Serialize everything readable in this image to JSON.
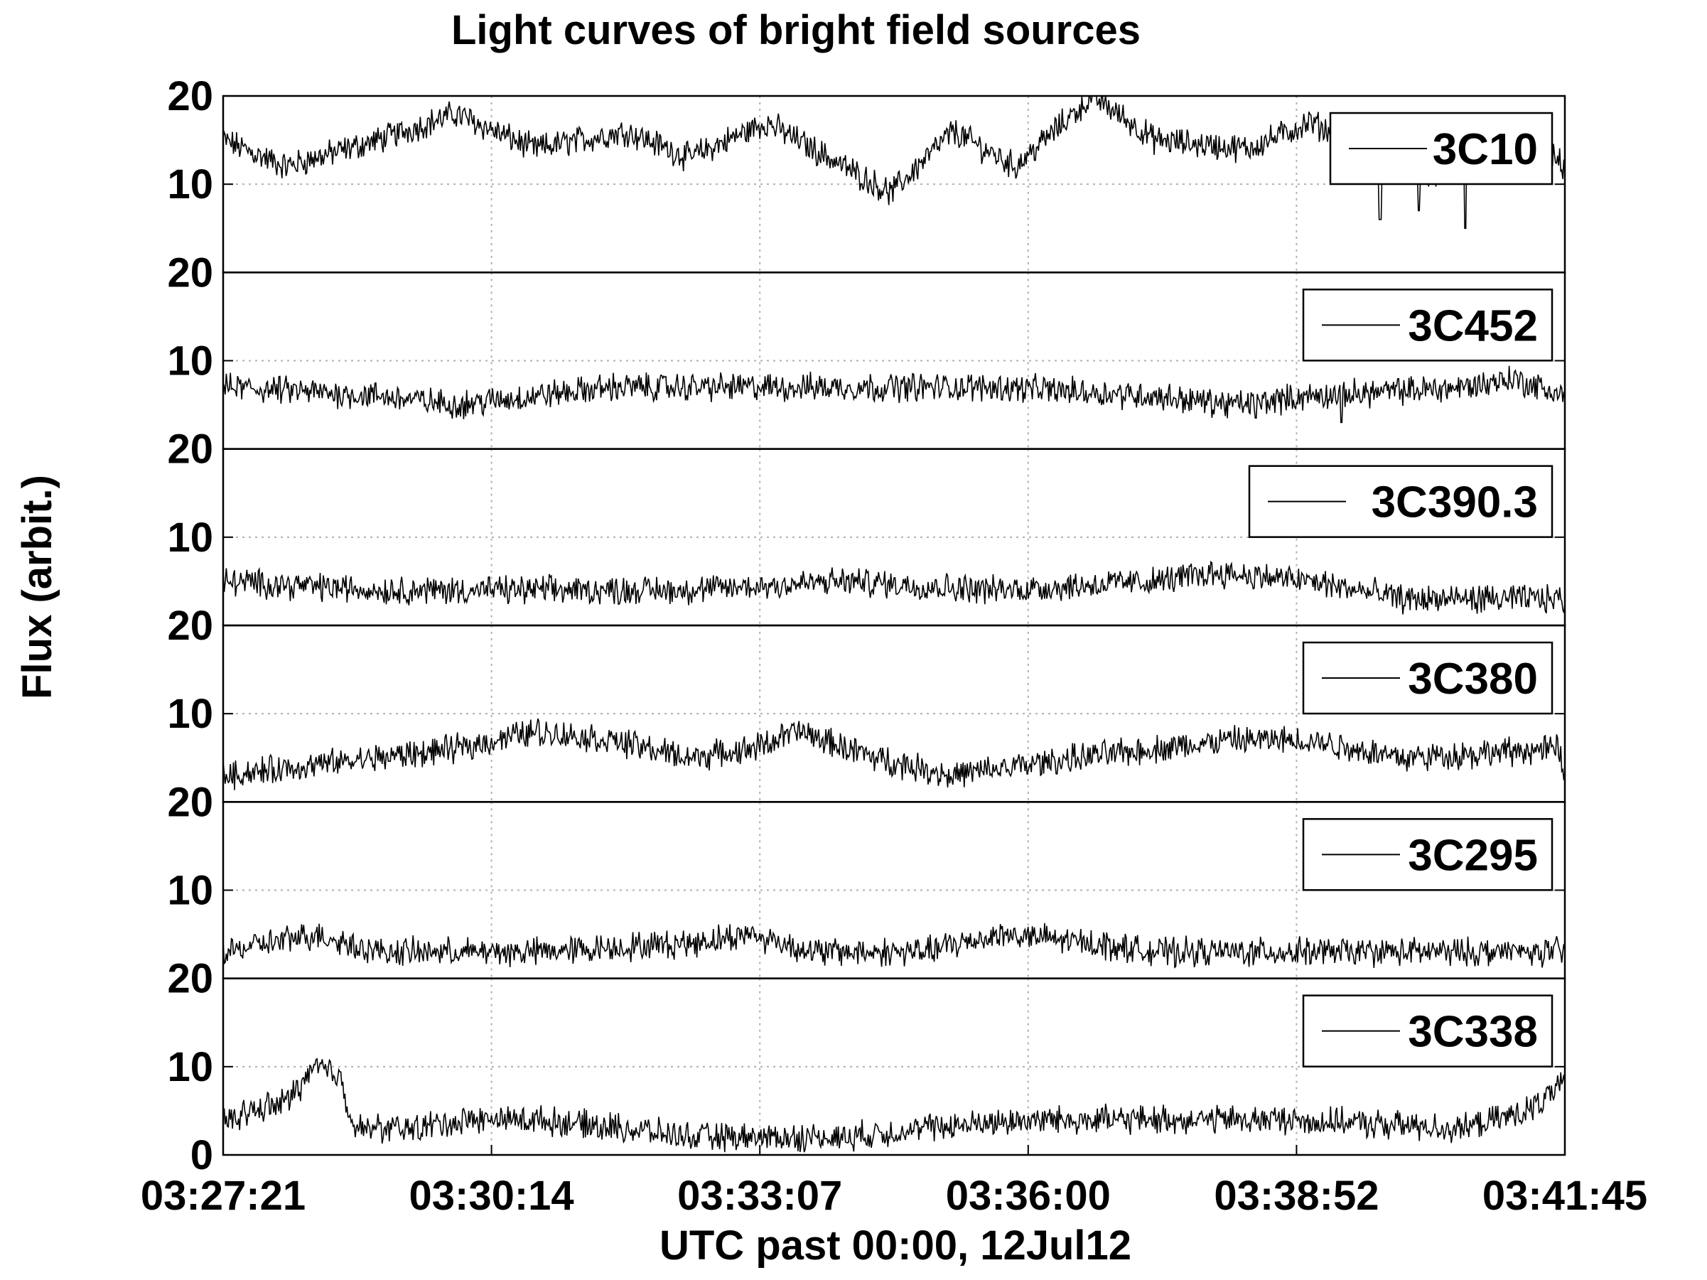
{
  "chart_data": {
    "type": "line",
    "title": "Light curves of bright field sources",
    "xlabel": "UTC past 00:00, 12Jul12",
    "ylabel": "Flux (arbit.)",
    "x_ticks": [
      "03:27:21",
      "03:30:14",
      "03:33:07",
      "03:36:00",
      "03:38:52",
      "03:41:45"
    ],
    "x_range_seconds": [
      0,
      864
    ],
    "ylim": [
      0,
      20
    ],
    "y_ticks": [
      "0",
      "10",
      "20"
    ],
    "grid": true,
    "legend_position": "top-right",
    "panels": [
      {
        "name": "3C10",
        "baseline": 14.5,
        "trend": [
          [
            0,
            15
          ],
          [
            40,
            12
          ],
          [
            100,
            15
          ],
          [
            150,
            18
          ],
          [
            200,
            14
          ],
          [
            260,
            16
          ],
          [
            300,
            13
          ],
          [
            350,
            17
          ],
          [
            400,
            12
          ],
          [
            430,
            9
          ],
          [
            470,
            16
          ],
          [
            510,
            12
          ],
          [
            560,
            20
          ],
          [
            600,
            15
          ],
          [
            660,
            14
          ],
          [
            700,
            17
          ],
          [
            750,
            13
          ],
          [
            780,
            11
          ],
          [
            820,
            17
          ],
          [
            864,
            12
          ]
        ],
        "dips": [
          [
            745,
            6
          ],
          [
            770,
            7
          ],
          [
            800,
            5
          ]
        ]
      },
      {
        "name": "3C452",
        "baseline": 6.5,
        "trend": [
          [
            0,
            7
          ],
          [
            100,
            6
          ],
          [
            150,
            5
          ],
          [
            250,
            7
          ],
          [
            300,
            7
          ],
          [
            400,
            7
          ],
          [
            500,
            7
          ],
          [
            600,
            6
          ],
          [
            650,
            5
          ],
          [
            700,
            6
          ],
          [
            800,
            7
          ],
          [
            830,
            8
          ],
          [
            864,
            6
          ]
        ],
        "dips": [
          [
            665,
            3.5
          ],
          [
            720,
            3
          ]
        ]
      },
      {
        "name": "3C390.3",
        "baseline": 4,
        "trend": [
          [
            0,
            5
          ],
          [
            100,
            4
          ],
          [
            200,
            4
          ],
          [
            300,
            4
          ],
          [
            400,
            5
          ],
          [
            500,
            4
          ],
          [
            600,
            5
          ],
          [
            640,
            6
          ],
          [
            700,
            5
          ],
          [
            760,
            3
          ],
          [
            864,
            3
          ]
        ],
        "dips": []
      },
      {
        "name": "3C380",
        "baseline": 6,
        "trend": [
          [
            0,
            3
          ],
          [
            100,
            5
          ],
          [
            150,
            6
          ],
          [
            200,
            8
          ],
          [
            250,
            7
          ],
          [
            300,
            5
          ],
          [
            340,
            6
          ],
          [
            370,
            8
          ],
          [
            420,
            5
          ],
          [
            470,
            3
          ],
          [
            550,
            5
          ],
          [
            600,
            6
          ],
          [
            650,
            7
          ],
          [
            700,
            7
          ],
          [
            760,
            5
          ],
          [
            860,
            6
          ],
          [
            864,
            3
          ]
        ],
        "dips": []
      },
      {
        "name": "3C295",
        "baseline": 3,
        "trend": [
          [
            0,
            3
          ],
          [
            60,
            5
          ],
          [
            100,
            3
          ],
          [
            200,
            3
          ],
          [
            300,
            4
          ],
          [
            340,
            5
          ],
          [
            380,
            3
          ],
          [
            450,
            3
          ],
          [
            500,
            5
          ],
          [
            560,
            4
          ],
          [
            600,
            3
          ],
          [
            700,
            3
          ],
          [
            864,
            3
          ]
        ],
        "dips": []
      },
      {
        "name": "3C338",
        "baseline": 3,
        "trend": [
          [
            0,
            4
          ],
          [
            40,
            6
          ],
          [
            60,
            10
          ],
          [
            75,
            9
          ],
          [
            85,
            3
          ],
          [
            120,
            3
          ],
          [
            160,
            4
          ],
          [
            200,
            4
          ],
          [
            260,
            3
          ],
          [
            300,
            2
          ],
          [
            400,
            2
          ],
          [
            450,
            3
          ],
          [
            520,
            4
          ],
          [
            580,
            4
          ],
          [
            680,
            4
          ],
          [
            800,
            3
          ],
          [
            840,
            5
          ],
          [
            864,
            8
          ]
        ],
        "dips": []
      }
    ]
  }
}
